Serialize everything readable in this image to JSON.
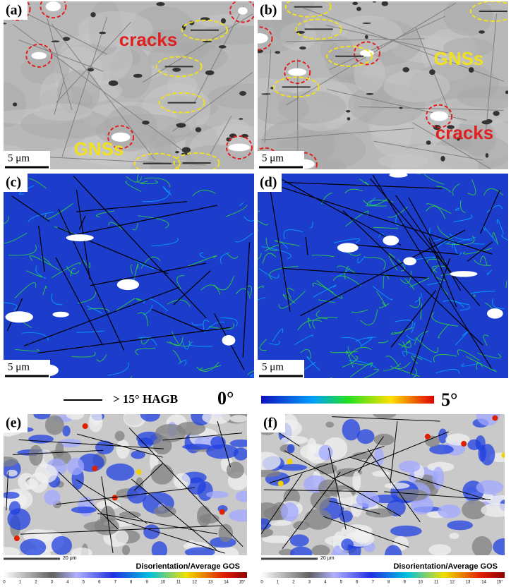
{
  "panels": [
    {
      "label": "(a)",
      "annotations": [
        "cracks",
        "GNSs"
      ],
      "scale_bar": "5 μm"
    },
    {
      "label": "(b)",
      "annotations": [
        "GNSs",
        "cracks"
      ],
      "scale_bar": "5 μm"
    },
    {
      "label": "(c)",
      "scale_bar": "5 μm"
    },
    {
      "label": "(d)",
      "scale_bar": "5 μm"
    },
    {
      "label": "(e)",
      "scale_bar": "20 μm",
      "colorbar_title": "Disorientation/Average GOS",
      "colorbar_ticks": [
        "0",
        "1",
        "2",
        "3",
        "4",
        "5",
        "6",
        "7",
        "8",
        "9",
        "10",
        "11",
        "12",
        "13",
        "14",
        "15°"
      ]
    },
    {
      "label": "(f)",
      "scale_bar": "20 μm",
      "colorbar_title": "Disorientation/Average GOS",
      "colorbar_ticks": [
        "0",
        "1",
        "2",
        "3",
        "4",
        "5",
        "6",
        "7",
        "8",
        "9",
        "10",
        "11",
        "12",
        "13",
        "14",
        "15°"
      ]
    }
  ],
  "legend": {
    "line_label": "> 15°  HAGB",
    "color_min": "0°",
    "color_max": "5°"
  }
}
